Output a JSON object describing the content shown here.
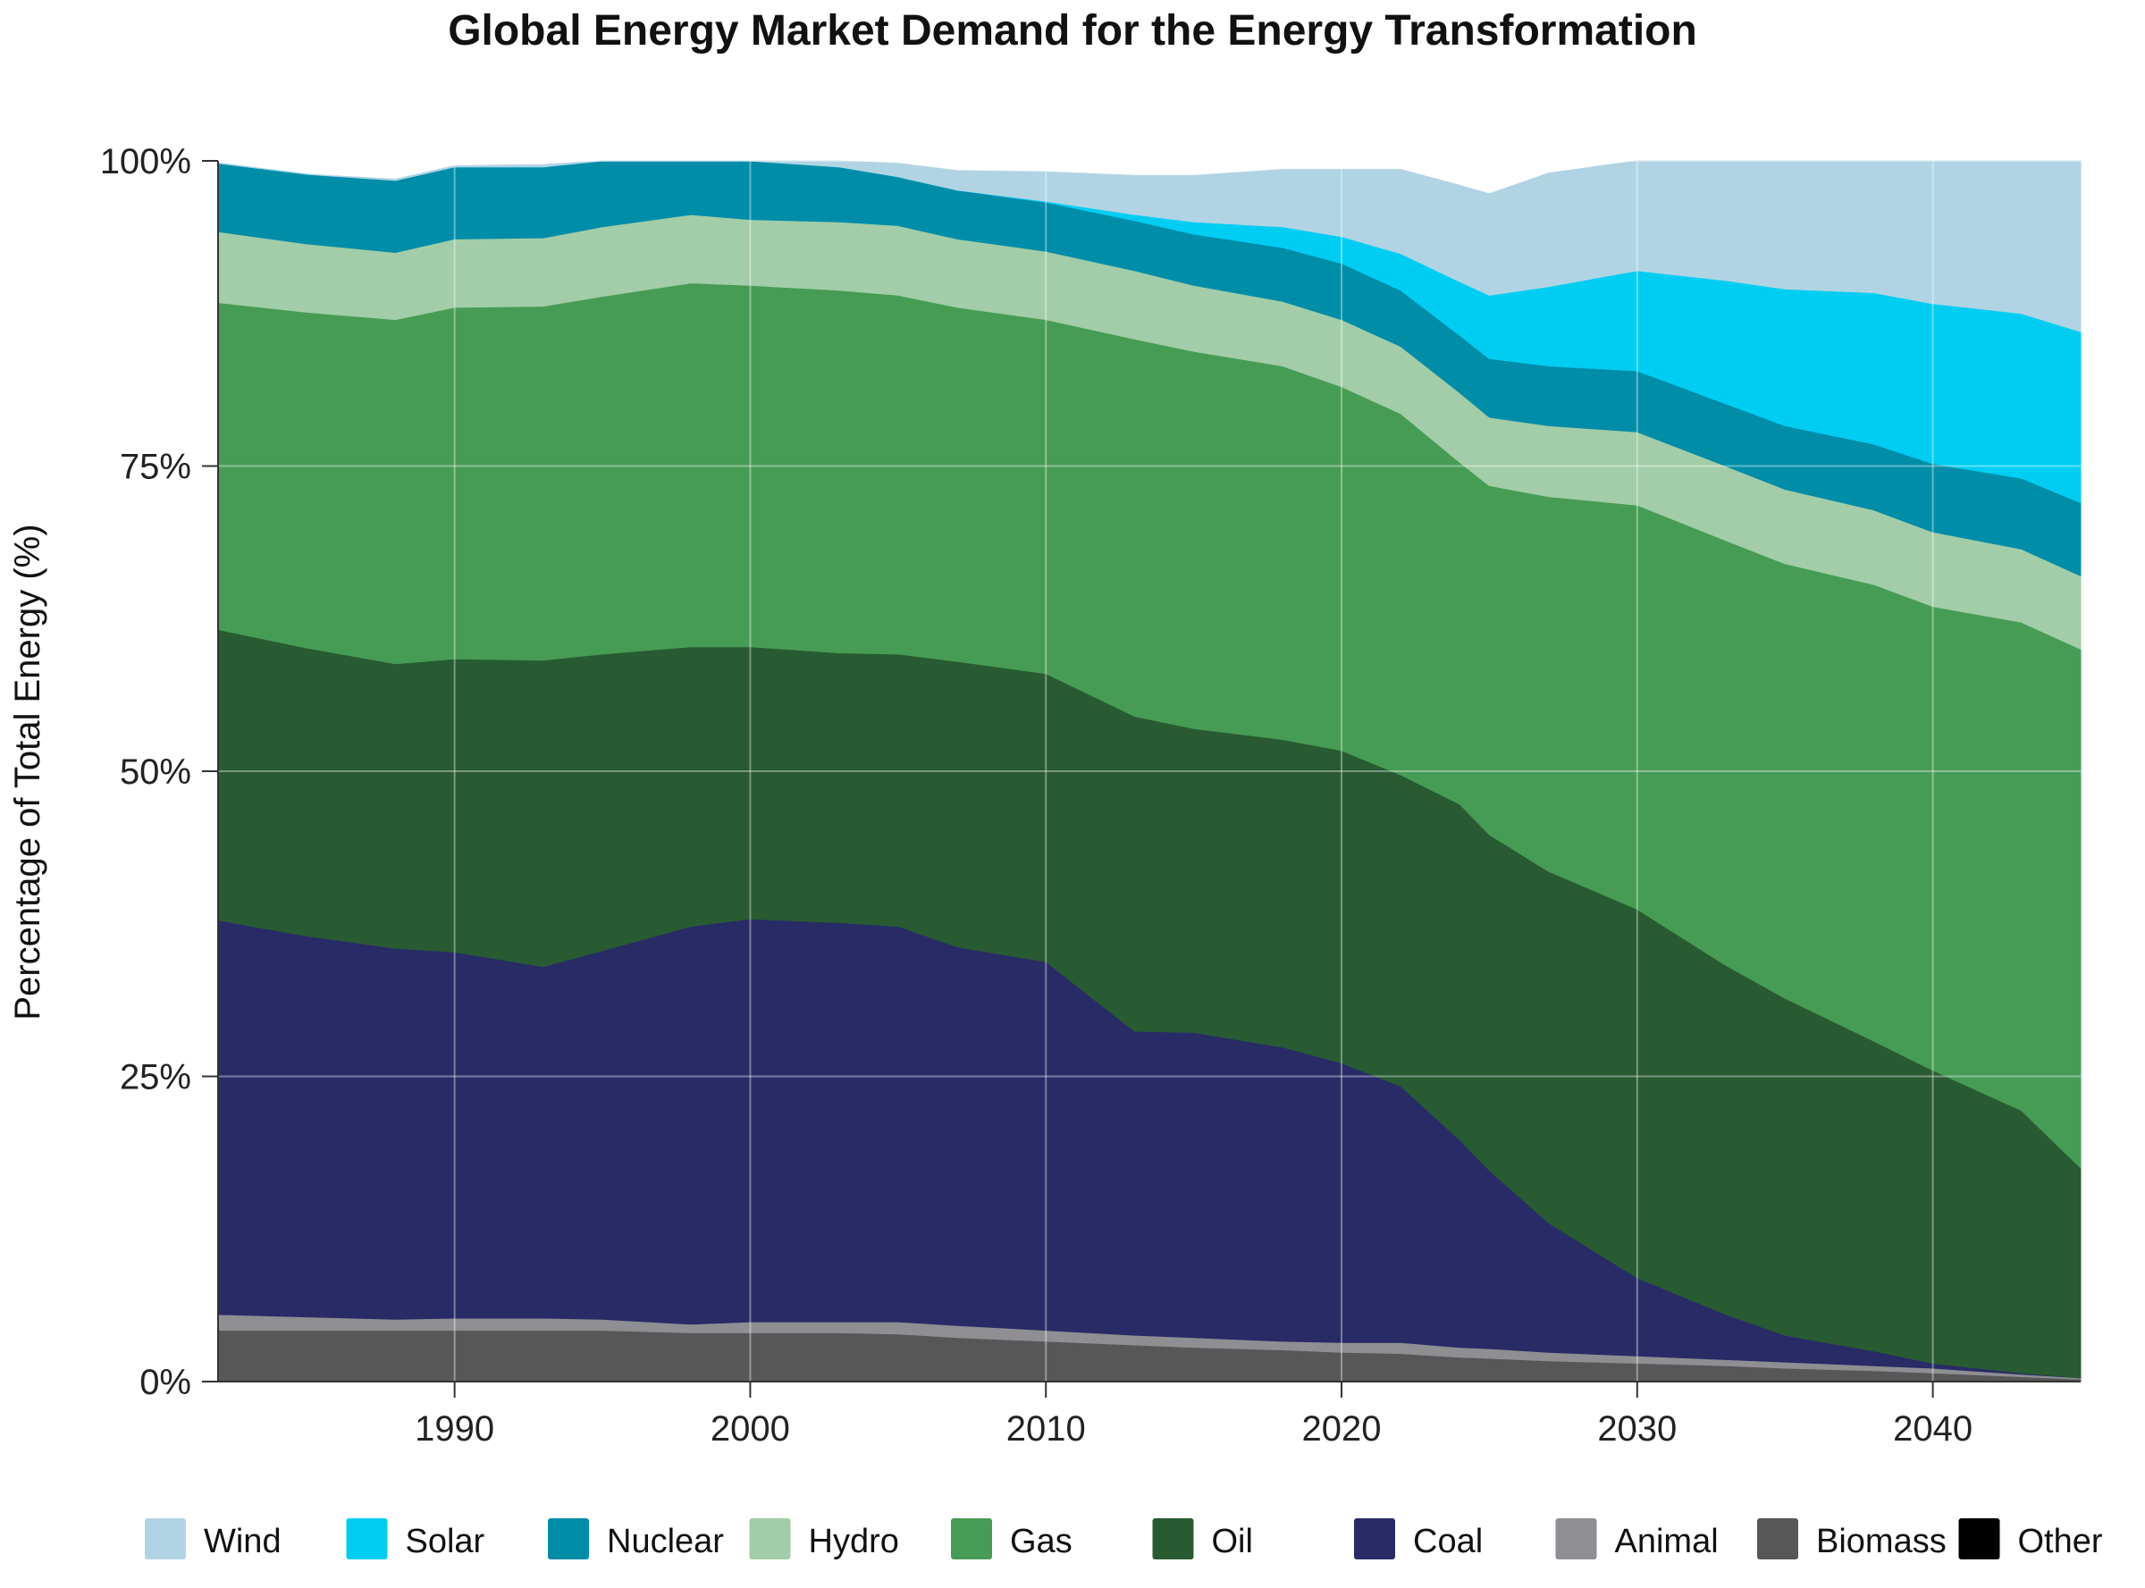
{
  "chart_data": {
    "type": "area",
    "stacked": true,
    "normalized": true,
    "title": "Global Energy Market Demand for the Energy Transformation",
    "xlabel": "",
    "ylabel": "Percentage of Total Energy (%)",
    "xlim": [
      1982,
      2045
    ],
    "ylim": [
      0,
      100
    ],
    "x_ticks": [
      1990,
      2000,
      2010,
      2020,
      2030,
      2040
    ],
    "x_tick_labels": [
      "1990",
      "2000",
      "2010",
      "2020",
      "2030",
      "2040"
    ],
    "y_ticks": [
      0,
      25,
      50,
      75,
      100
    ],
    "y_tick_labels": [
      "0%",
      "25%",
      "50%",
      "75%",
      "100%"
    ],
    "grid": true,
    "legend_position": "bottom",
    "x": [
      1982,
      1985,
      1988,
      1990,
      1993,
      1995,
      1998,
      2000,
      2003,
      2005,
      2007,
      2010,
      2013,
      2015,
      2018,
      2020,
      2022,
      2024,
      2025,
      2027,
      2030,
      2033,
      2035,
      2038,
      2040,
      2043,
      2045
    ],
    "series": [
      {
        "name": "Biomass",
        "color": "#575757",
        "values": [
          4.2,
          4.2,
          4.2,
          4.2,
          4.2,
          4.2,
          4.0,
          4.0,
          4.0,
          3.9,
          3.6,
          3.3,
          3.0,
          2.8,
          2.6,
          2.4,
          2.3,
          2.0,
          1.9,
          1.7,
          1.5,
          1.3,
          1.1,
          0.9,
          0.7,
          0.4,
          0.2
        ]
      },
      {
        "name": "Animal",
        "color": "#8e8e93",
        "values": [
          1.3,
          1.1,
          0.9,
          1.0,
          1.0,
          0.9,
          0.7,
          0.9,
          0.9,
          1.0,
          1.0,
          0.9,
          0.8,
          0.8,
          0.7,
          0.8,
          0.9,
          0.8,
          0.8,
          0.7,
          0.6,
          0.5,
          0.5,
          0.4,
          0.4,
          0.2,
          0.1
        ]
      },
      {
        "name": "Coal",
        "color": "#292b67",
        "values": [
          32.3,
          31.2,
          30.4,
          30.0,
          28.8,
          30.2,
          32.6,
          33.0,
          32.7,
          32.4,
          31.0,
          30.2,
          24.9,
          25.0,
          24.1,
          22.9,
          21.0,
          17.0,
          14.6,
          10.6,
          6.4,
          3.7,
          2.2,
          1.2,
          0.4,
          0.1,
          0.0
        ]
      },
      {
        "name": "Oil",
        "color": "#285b32",
        "values": [
          23.8,
          23.6,
          23.3,
          24.0,
          25.1,
          24.3,
          22.9,
          22.3,
          22.1,
          22.3,
          23.4,
          23.6,
          25.8,
          24.9,
          25.2,
          25.6,
          25.5,
          27.5,
          27.5,
          28.8,
          30.2,
          28.6,
          27.6,
          25.4,
          24.0,
          21.5,
          17.2
        ]
      },
      {
        "name": "Gas",
        "color": "#479c55",
        "values": [
          26.8,
          27.5,
          28.2,
          28.8,
          29.0,
          29.3,
          29.8,
          29.6,
          29.7,
          29.4,
          29.0,
          29.0,
          30.9,
          30.9,
          30.6,
          29.8,
          29.6,
          28.0,
          28.6,
          30.7,
          33.1,
          34.8,
          35.6,
          37.4,
          38.0,
          40.0,
          42.5
        ]
      },
      {
        "name": "Hydro",
        "color": "#a2cda8",
        "values": [
          5.8,
          5.6,
          5.5,
          5.6,
          5.6,
          5.7,
          5.6,
          5.4,
          5.6,
          5.7,
          5.6,
          5.6,
          5.6,
          5.4,
          5.3,
          5.5,
          5.5,
          5.7,
          5.6,
          5.8,
          6.0,
          6.1,
          6.1,
          6.1,
          6.1,
          6.0,
          6.0
        ]
      },
      {
        "name": "Nuclear",
        "color": "#008da8",
        "values": [
          5.6,
          5.7,
          5.9,
          5.9,
          5.8,
          5.5,
          5.3,
          5.0,
          4.5,
          4.0,
          4.0,
          4.0,
          4.1,
          4.2,
          4.4,
          4.6,
          4.6,
          4.7,
          4.8,
          4.9,
          5.0,
          5.1,
          5.2,
          5.4,
          5.6,
          5.8,
          6.0
        ]
      },
      {
        "name": "Solar",
        "color": "#00cdf2",
        "values": [
          0.0,
          0.0,
          0.0,
          0.0,
          0.0,
          0.0,
          0.0,
          0.0,
          0.0,
          0.0,
          0.0,
          0.1,
          0.5,
          1.0,
          1.7,
          2.2,
          3.0,
          4.4,
          5.2,
          6.5,
          8.2,
          10.1,
          11.2,
          12.4,
          13.1,
          13.5,
          14.0
        ]
      },
      {
        "name": "Wind",
        "color": "#b1d4e4",
        "values": [
          0.0,
          0.0,
          0.1,
          0.1,
          0.2,
          0.3,
          0.5,
          0.6,
          0.8,
          1.1,
          1.6,
          2.4,
          3.2,
          3.8,
          4.7,
          5.5,
          6.9,
          7.9,
          8.3,
          9.3,
          9.0,
          9.8,
          10.5,
          10.8,
          11.7,
          12.5,
          14.0
        ]
      }
    ],
    "legend": [
      {
        "name": "Wind",
        "color": "#b1d4e4"
      },
      {
        "name": "Solar",
        "color": "#00cdf2"
      },
      {
        "name": "Nuclear",
        "color": "#008da8"
      },
      {
        "name": "Hydro",
        "color": "#a2cda8"
      },
      {
        "name": "Gas",
        "color": "#479c55"
      },
      {
        "name": "Oil",
        "color": "#285b32"
      },
      {
        "name": "Coal",
        "color": "#292b67"
      },
      {
        "name": "Animal",
        "color": "#8e8e93"
      },
      {
        "name": "Biomass",
        "color": "#575757"
      },
      {
        "name": "Other",
        "color": "#000000"
      }
    ]
  }
}
